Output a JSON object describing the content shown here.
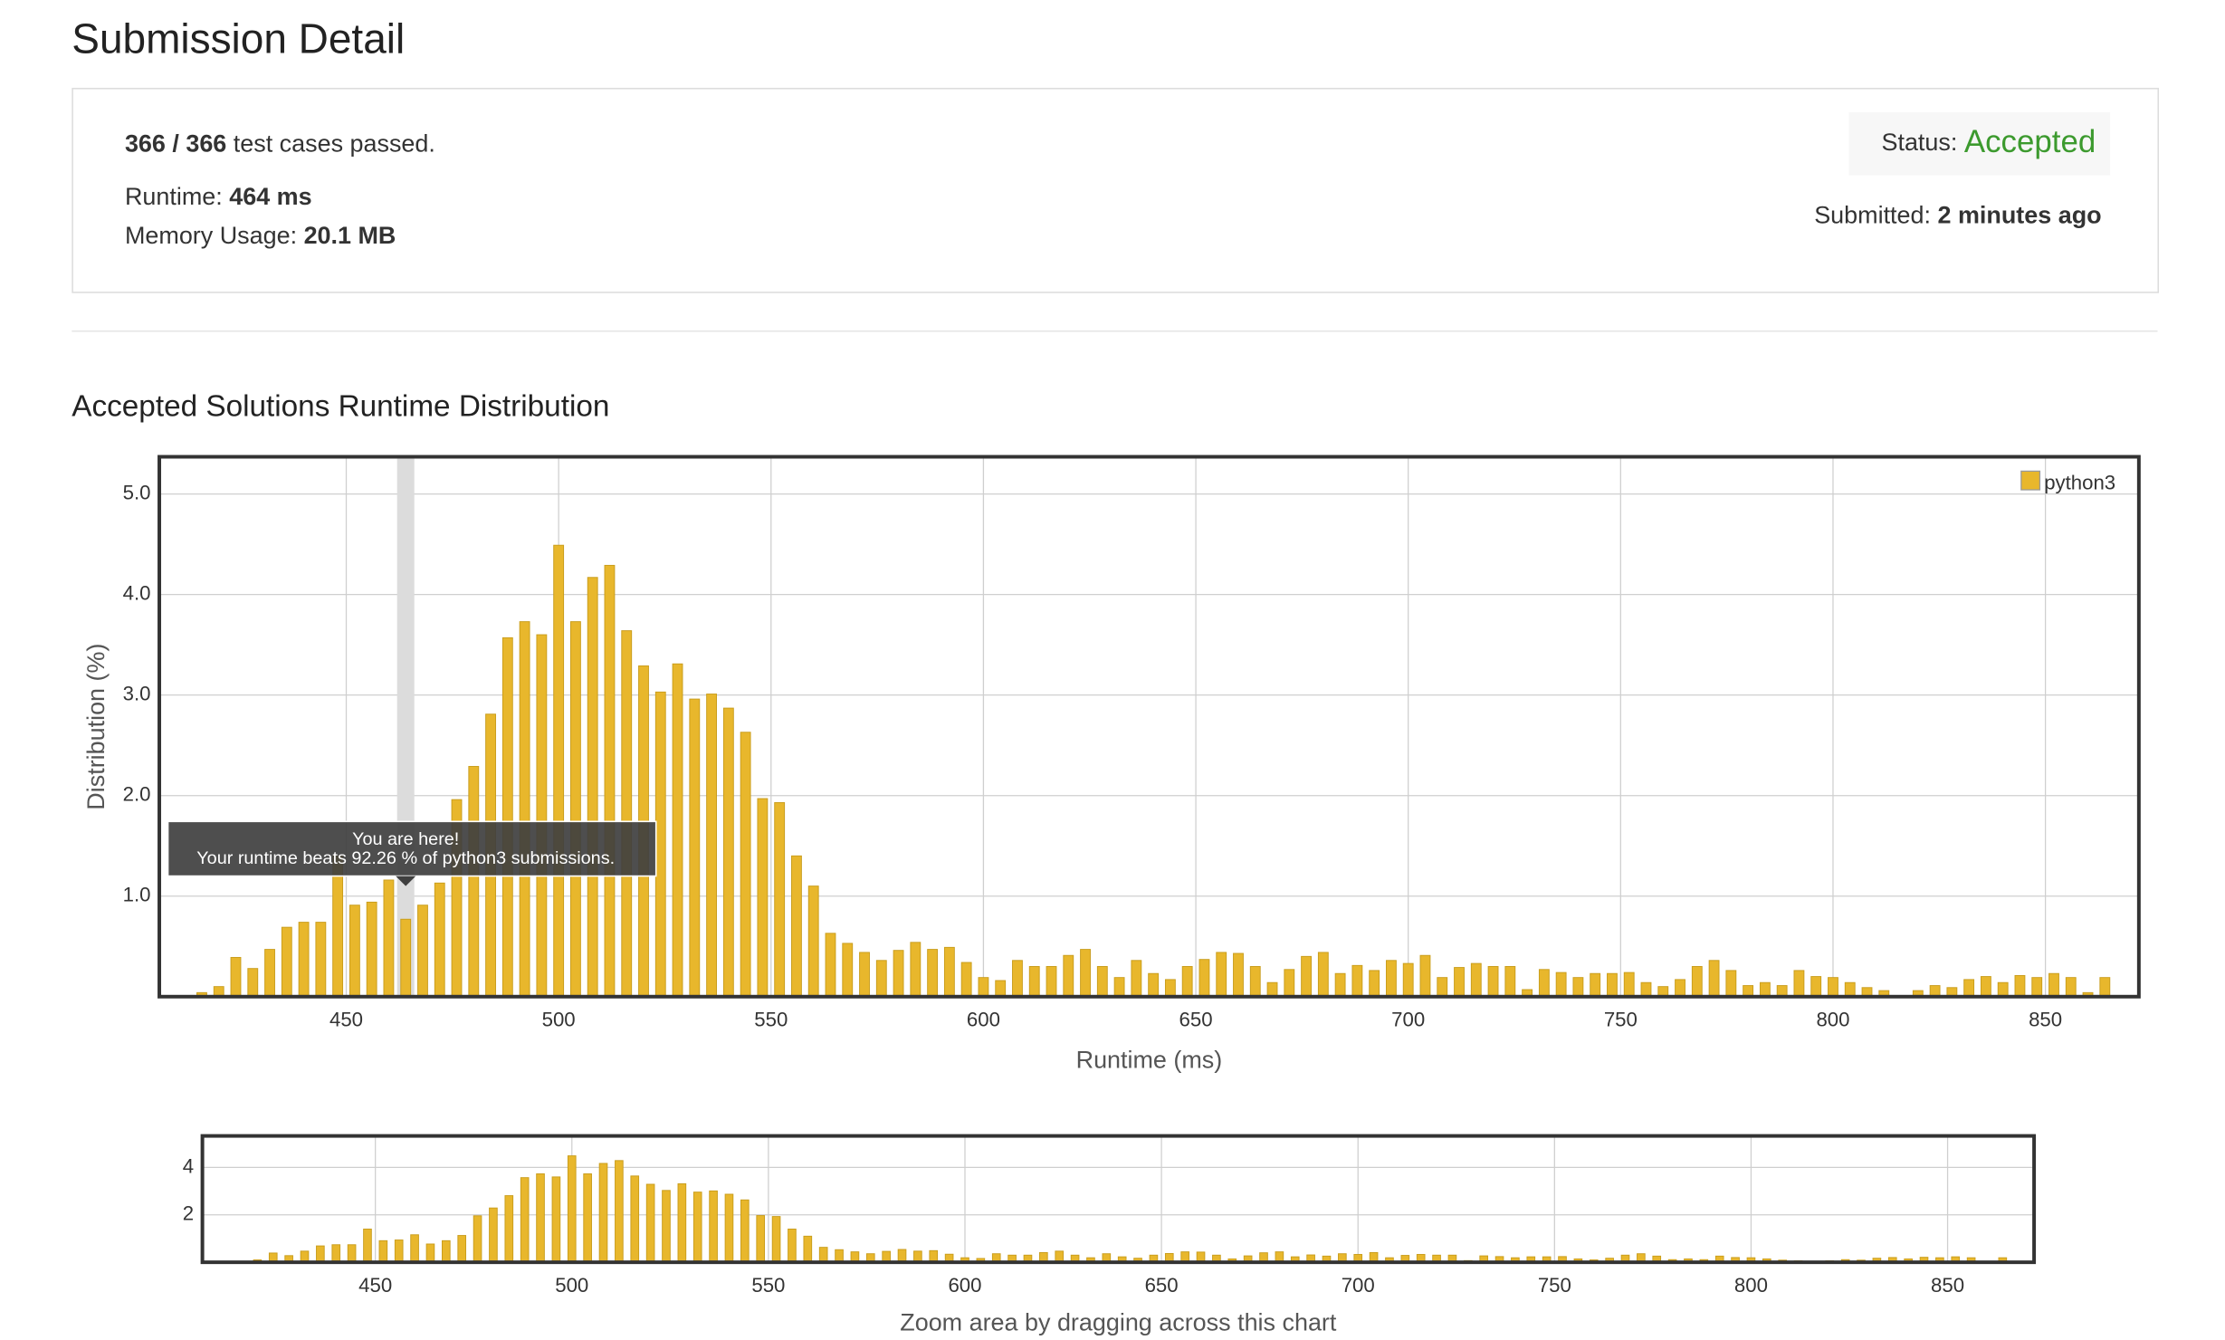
{
  "header": {
    "title": "Submission Detail"
  },
  "summary": {
    "passed": "366 / 366",
    "passed_label": "test cases passed.",
    "runtime_label": "Runtime:",
    "runtime": "464 ms",
    "memory_label": "Memory Usage:",
    "memory": "20.1 MB",
    "status_label": "Status:",
    "status": "Accepted",
    "submitted_label": "Submitted:",
    "submitted": "2 minutes ago"
  },
  "section_title": "Accepted Solutions Runtime Distribution",
  "chart_data": [
    {
      "type": "bar",
      "xlabel": "Runtime (ms)",
      "ylabel": "Distribution (%)",
      "x": [
        416,
        420,
        424,
        428,
        432,
        436,
        440,
        444,
        448,
        452,
        456,
        460,
        464,
        468,
        472,
        476,
        480,
        484,
        488,
        492,
        496,
        500,
        504,
        508,
        512,
        516,
        520,
        524,
        528,
        532,
        536,
        540,
        544,
        548,
        552,
        556,
        560,
        564,
        568,
        572,
        576,
        580,
        584,
        588,
        592,
        596,
        600,
        604,
        608,
        612,
        616,
        620,
        624,
        628,
        632,
        636,
        640,
        644,
        648,
        652,
        656,
        660,
        664,
        668,
        672,
        676,
        680,
        684,
        688,
        692,
        696,
        700,
        704,
        708,
        712,
        716,
        720,
        724,
        728,
        732,
        736,
        740,
        744,
        748,
        752,
        756,
        760,
        764,
        768,
        772,
        776,
        780,
        784,
        788,
        792,
        796,
        800,
        804,
        808,
        812,
        816,
        820,
        824,
        828,
        832,
        836,
        840,
        844,
        848,
        852,
        856,
        860,
        864
      ],
      "series": [
        {
          "name": "python3",
          "color": "#e8b72c",
          "values": [
            0.04,
            0.1,
            0.39,
            0.28,
            0.47,
            0.69,
            0.74,
            0.74,
            1.4,
            0.91,
            0.94,
            1.16,
            0.77,
            0.91,
            1.13,
            1.96,
            2.29,
            2.81,
            3.57,
            3.73,
            3.6,
            4.49,
            3.73,
            4.17,
            4.29,
            3.64,
            3.29,
            3.03,
            3.31,
            2.96,
            3.01,
            2.87,
            2.63,
            1.97,
            1.93,
            1.4,
            1.1,
            0.63,
            0.53,
            0.44,
            0.36,
            0.46,
            0.54,
            0.47,
            0.49,
            0.34,
            0.19,
            0.16,
            0.36,
            0.3,
            0.3,
            0.41,
            0.47,
            0.3,
            0.19,
            0.36,
            0.23,
            0.17,
            0.3,
            0.37,
            0.44,
            0.43,
            0.3,
            0.14,
            0.27,
            0.4,
            0.44,
            0.23,
            0.31,
            0.26,
            0.36,
            0.33,
            0.41,
            0.19,
            0.29,
            0.33,
            0.3,
            0.3,
            0.07,
            0.27,
            0.24,
            0.19,
            0.23,
            0.23,
            0.24,
            0.14,
            0.1,
            0.17,
            0.3,
            0.36,
            0.26,
            0.11,
            0.14,
            0.11,
            0.26,
            0.2,
            0.19,
            0.14,
            0.09,
            0.06,
            0,
            0.06,
            0.11,
            0.09,
            0.17,
            0.2,
            0.14,
            0.21,
            0.19,
            0.23,
            0.19,
            0.04,
            0.19
          ]
        }
      ],
      "xlim": [
        406,
        872
      ],
      "ylim": [
        0,
        5.37
      ],
      "xticks": [
        450,
        500,
        550,
        600,
        650,
        700,
        750,
        800,
        850
      ],
      "yticks": [
        {
          "value": 1,
          "label": "1.0"
        },
        {
          "value": 2,
          "label": "2.0"
        },
        {
          "value": 3,
          "label": "3.0"
        },
        {
          "value": 4,
          "label": "4.0"
        },
        {
          "value": 5,
          "label": "5.0"
        }
      ],
      "grid": true,
      "legend": "top-right",
      "highlight_x": 464,
      "annotations": [
        "You are here!",
        "Your runtime beats 92.26 % of python3 submissions."
      ]
    },
    {
      "type": "bar",
      "xlabel": "Zoom area by dragging across this chart",
      "xlim": [
        406,
        872
      ],
      "ylim": [
        0,
        5.33
      ],
      "xticks": [
        450,
        500,
        550,
        600,
        650,
        700,
        750,
        800,
        850
      ],
      "yticks": [
        2,
        4
      ],
      "grid": true
    }
  ]
}
